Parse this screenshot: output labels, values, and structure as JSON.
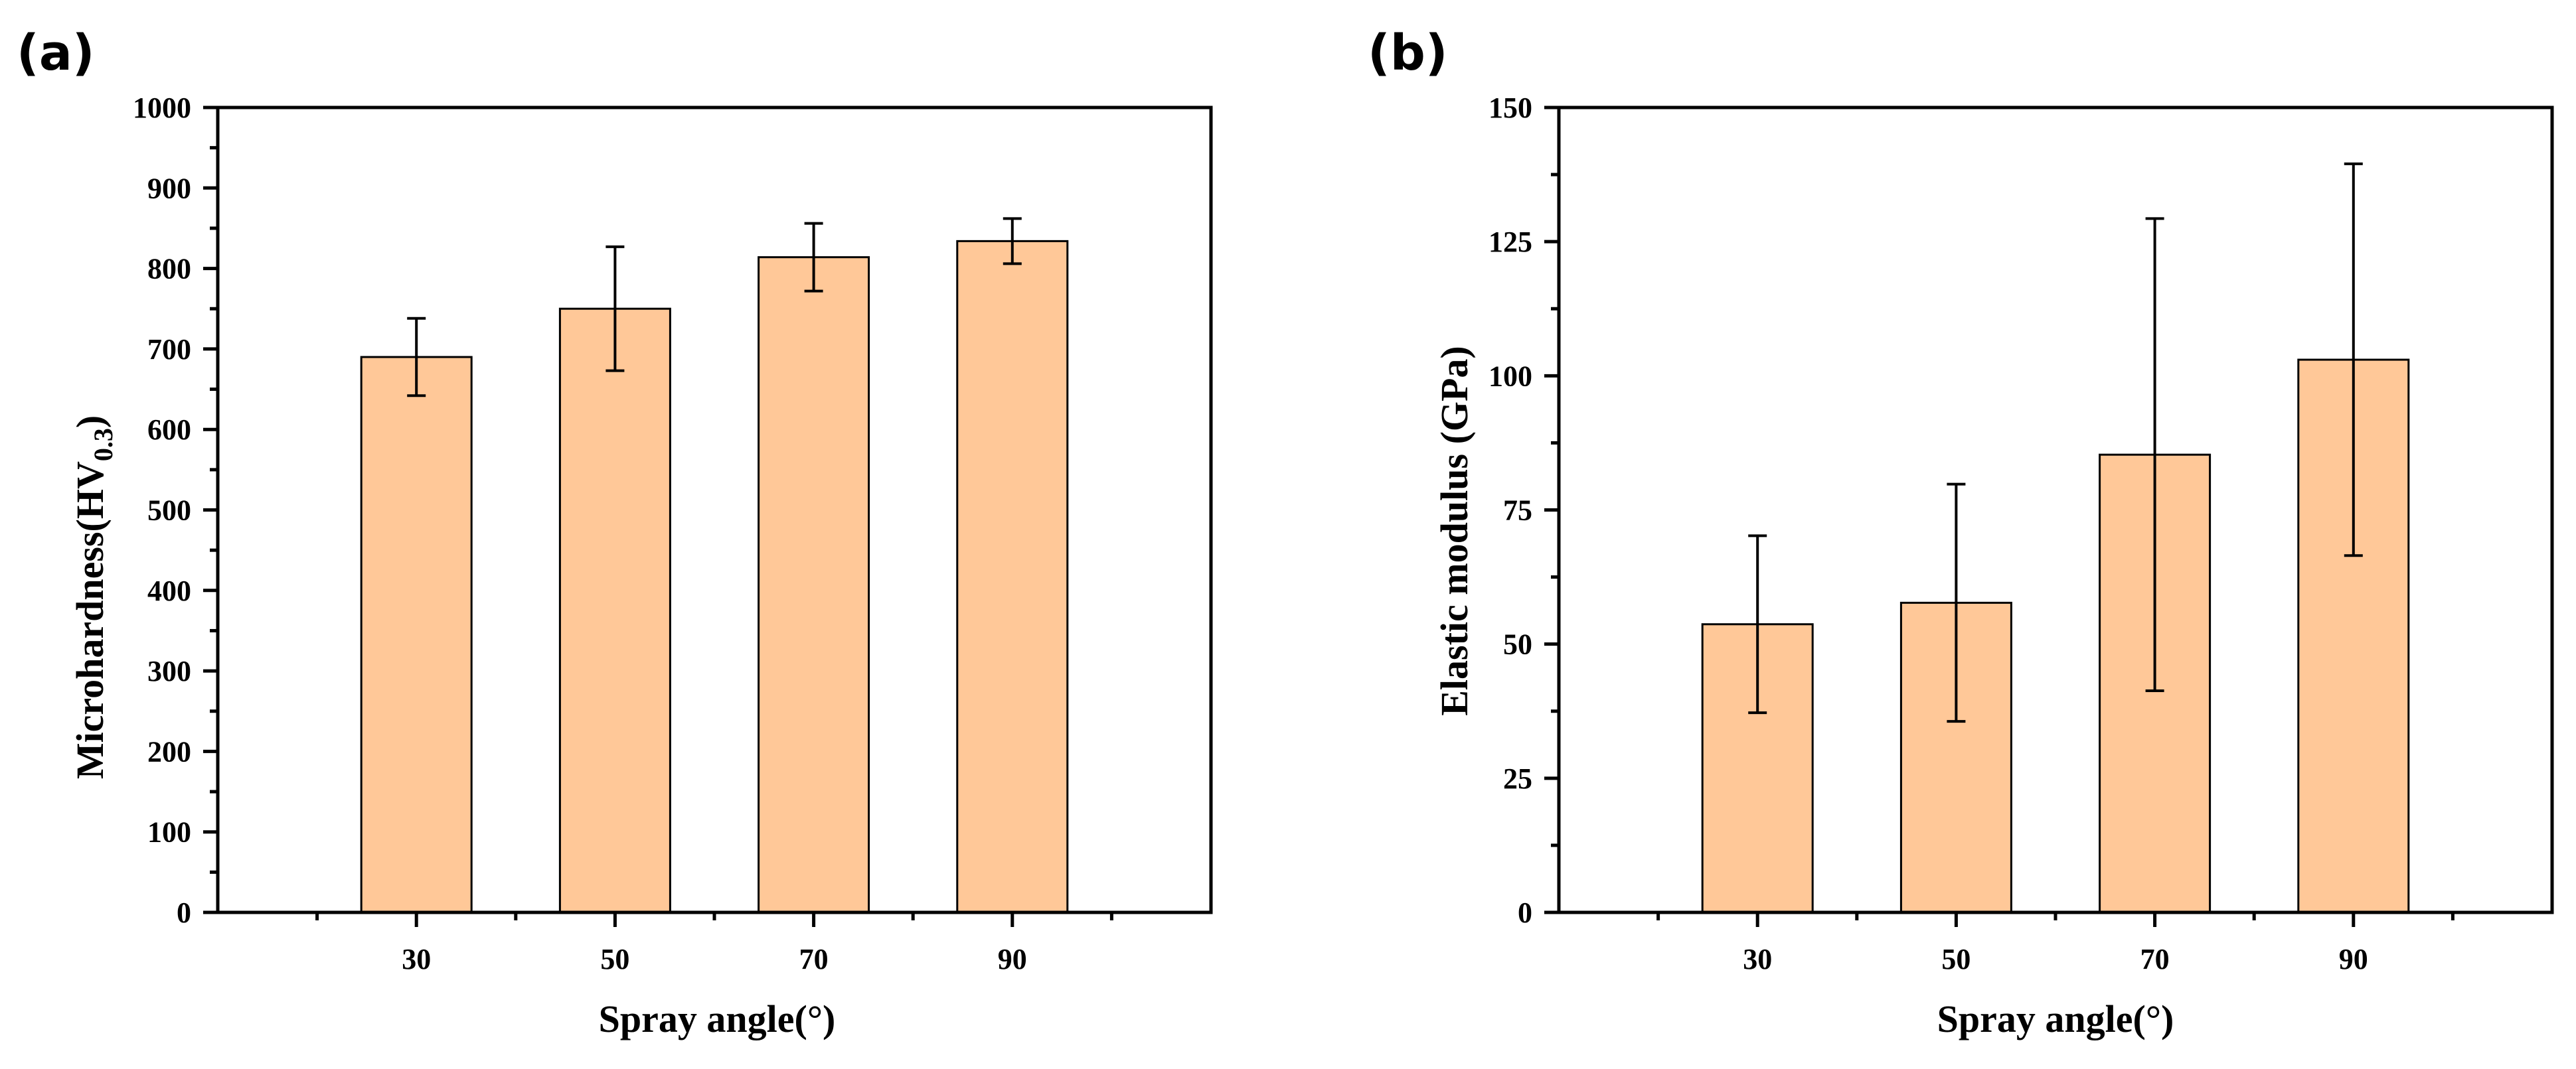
{
  "chart_data": [
    {
      "type": "bar",
      "panel_label": "(a)",
      "xlabel": "Spray angle(°)",
      "ylabel": "Microhardness(HV",
      "ylabel_subscript": "0.3",
      "ylabel_suffix": ")",
      "categories": [
        "30",
        "50",
        "70",
        "90"
      ],
      "values": [
        690,
        750,
        814,
        834
      ],
      "errors": [
        48,
        77,
        42,
        28
      ],
      "ylim": [
        0,
        1000
      ],
      "yticks": [
        0,
        100,
        200,
        300,
        400,
        500,
        600,
        700,
        800,
        900,
        1000
      ],
      "bar_color": "#FFC898",
      "grid": false,
      "legend": "none"
    },
    {
      "type": "bar",
      "panel_label": "(b)",
      "xlabel": "Spray angle(°)",
      "ylabel": "Elastic modulus (GPa)",
      "categories": [
        "30",
        "50",
        "70",
        "90"
      ],
      "values": [
        53.7,
        57.7,
        85.3,
        103
      ],
      "errors": [
        16.5,
        22.1,
        44,
        36.5
      ],
      "ylim": [
        0,
        150
      ],
      "yticks": [
        0,
        25,
        50,
        75,
        100,
        125,
        150
      ],
      "bar_color": "#FFC898",
      "grid": false,
      "legend": "none"
    }
  ]
}
